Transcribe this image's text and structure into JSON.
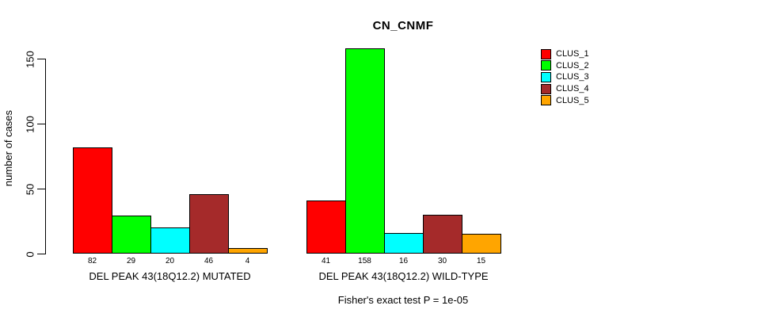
{
  "chart_data": {
    "type": "bar",
    "title": "CN_CNMF",
    "ylabel": "number of cases",
    "xlabel": "",
    "ylim": [
      0,
      165
    ],
    "yticks": [
      0,
      50,
      100,
      150
    ],
    "grid": false,
    "legend_position": "right-outside",
    "bar_border_color": "#000000",
    "categories": [
      "DEL PEAK 43(18Q12.2) MUTATED",
      "DEL PEAK 43(18Q12.2) WILD-TYPE"
    ],
    "series": [
      {
        "name": "CLUS_1",
        "color": "#FF0000",
        "values": [
          82,
          41
        ]
      },
      {
        "name": "CLUS_2",
        "color": "#00FF00",
        "values": [
          29,
          158
        ]
      },
      {
        "name": "CLUS_3",
        "color": "#00FFFF",
        "values": [
          20,
          16
        ]
      },
      {
        "name": "CLUS_4",
        "color": "#A52A2A",
        "values": [
          46,
          30
        ]
      },
      {
        "name": "CLUS_5",
        "color": "#FFA500",
        "values": [
          4,
          15
        ]
      }
    ],
    "bar_value_labels": [
      [
        82,
        29,
        20,
        46,
        4
      ],
      [
        41,
        158,
        16,
        30,
        15
      ]
    ],
    "footnote": "Fisher's exact test P = 1e-05"
  }
}
